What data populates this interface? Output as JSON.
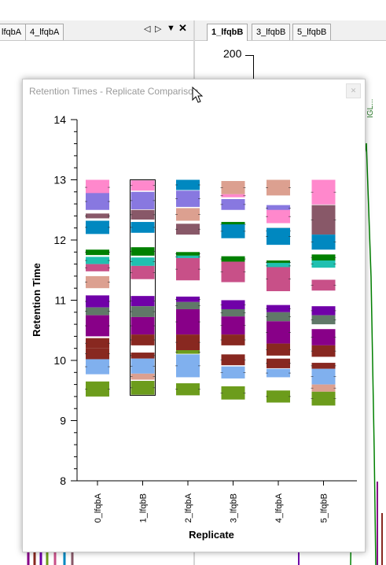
{
  "left_tabs": [
    "lfqbA",
    "4_lfqbA"
  ],
  "right_tabs": [
    "1_lfqbB",
    "3_lfqbB",
    "5_lfqbB"
  ],
  "background_chart": {
    "y_tick": "200",
    "side_label": "IGL..."
  },
  "popup": {
    "title": "Retention Times - Replicate Comparison"
  },
  "chart_data": {
    "type": "bar",
    "title": "",
    "xlabel": "Replicate",
    "ylabel": "Retention Time",
    "ylim": [
      8,
      14
    ],
    "yticks": [
      8,
      9,
      10,
      11,
      12,
      13,
      14
    ],
    "categories": [
      "0_lfqbA",
      "1_lfqbB",
      "2_lfqbA",
      "3_lfqbB",
      "4_lfqbA",
      "5_lfqbB"
    ],
    "selected": "1_lfqbB",
    "selection_range": [
      9.42,
      13.0
    ],
    "peptide_colors": [
      "#ff88cc",
      "#8878e0",
      "#885868",
      "#0088c0",
      "#dca090",
      "#008000",
      "#20c0b0",
      "#c85088",
      "#7000a8",
      "#607868",
      "#880088",
      "#882820",
      "#80b0ee",
      "#6c9c1c"
    ],
    "bars": [
      [
        [
          12.75,
          13.0,
          0
        ],
        [
          12.5,
          12.78,
          1
        ],
        [
          12.36,
          12.44,
          2
        ],
        [
          12.1,
          12.32,
          3
        ],
        [
          11.6,
          11.72,
          6
        ],
        [
          11.48,
          11.6,
          7
        ],
        [
          11.2,
          11.4,
          4
        ],
        [
          10.88,
          11.08,
          8
        ],
        [
          10.75,
          10.88,
          9
        ],
        [
          10.4,
          10.75,
          10
        ],
        [
          10.2,
          10.37,
          11
        ],
        [
          10.02,
          10.2,
          11
        ],
        [
          9.77,
          10.02,
          12
        ],
        [
          9.4,
          9.65,
          13
        ],
        [
          11.75,
          11.84,
          5
        ]
      ],
      [
        [
          12.82,
          12.99,
          0
        ],
        [
          12.51,
          12.8,
          1
        ],
        [
          12.34,
          12.5,
          2
        ],
        [
          12.12,
          12.3,
          3
        ],
        [
          11.74,
          11.88,
          5
        ],
        [
          11.57,
          11.71,
          6
        ],
        [
          11.35,
          11.57,
          7
        ],
        [
          10.9,
          11.07,
          8
        ],
        [
          10.72,
          10.9,
          9
        ],
        [
          10.43,
          10.72,
          10
        ],
        [
          10.25,
          10.43,
          11
        ],
        [
          10.03,
          10.13,
          11
        ],
        [
          9.78,
          10.03,
          12
        ],
        [
          9.68,
          9.78,
          4
        ],
        [
          9.43,
          9.66,
          13
        ]
      ],
      [
        [
          12.83,
          13.0,
          3
        ],
        [
          12.55,
          12.82,
          1
        ],
        [
          12.32,
          12.53,
          4
        ],
        [
          12.09,
          12.27,
          2
        ],
        [
          11.74,
          11.8,
          5
        ],
        [
          11.7,
          11.74,
          6
        ],
        [
          11.33,
          11.7,
          7
        ],
        [
          10.97,
          11.06,
          8
        ],
        [
          10.85,
          10.97,
          9
        ],
        [
          10.43,
          10.85,
          10
        ],
        [
          10.17,
          10.43,
          11
        ],
        [
          10.11,
          10.17,
          13
        ],
        [
          9.72,
          10.1,
          12
        ],
        [
          9.42,
          9.62,
          13
        ]
      ],
      [
        [
          12.76,
          12.98,
          4
        ],
        [
          12.71,
          12.76,
          0
        ],
        [
          12.5,
          12.68,
          1
        ],
        [
          12.22,
          12.3,
          5
        ],
        [
          12.03,
          12.26,
          3
        ],
        [
          11.64,
          11.73,
          5
        ],
        [
          11.3,
          11.64,
          7
        ],
        [
          10.85,
          11.0,
          8
        ],
        [
          10.73,
          10.85,
          9
        ],
        [
          10.43,
          10.73,
          10
        ],
        [
          10.25,
          10.43,
          11
        ],
        [
          9.92,
          10.1,
          11
        ],
        [
          9.7,
          9.9,
          12
        ],
        [
          9.35,
          9.57,
          13
        ]
      ],
      [
        [
          12.74,
          13.0,
          4
        ],
        [
          12.48,
          12.58,
          1
        ],
        [
          12.28,
          12.5,
          0
        ],
        [
          12.1,
          12.2,
          2
        ],
        [
          11.92,
          12.2,
          3
        ],
        [
          11.6,
          11.66,
          5
        ],
        [
          11.52,
          11.62,
          6
        ],
        [
          11.15,
          11.55,
          7
        ],
        [
          10.8,
          10.92,
          8
        ],
        [
          10.65,
          10.8,
          9
        ],
        [
          10.28,
          10.65,
          10
        ],
        [
          10.08,
          10.28,
          11
        ],
        [
          9.87,
          10.03,
          11
        ],
        [
          9.72,
          9.86,
          12
        ],
        [
          9.3,
          9.5,
          13
        ]
      ],
      [
        [
          12.59,
          13.0,
          0
        ],
        [
          12.09,
          12.58,
          2
        ],
        [
          11.84,
          12.09,
          3
        ],
        [
          11.66,
          11.76,
          5
        ],
        [
          11.54,
          11.66,
          6
        ],
        [
          11.16,
          11.34,
          7
        ],
        [
          10.75,
          10.9,
          8
        ],
        [
          10.6,
          10.75,
          9
        ],
        [
          10.25,
          10.52,
          10
        ],
        [
          10.06,
          10.25,
          11
        ],
        [
          9.86,
          9.96,
          11
        ],
        [
          9.6,
          9.86,
          12
        ],
        [
          9.48,
          9.6,
          4
        ],
        [
          9.25,
          9.48,
          13
        ]
      ]
    ]
  }
}
